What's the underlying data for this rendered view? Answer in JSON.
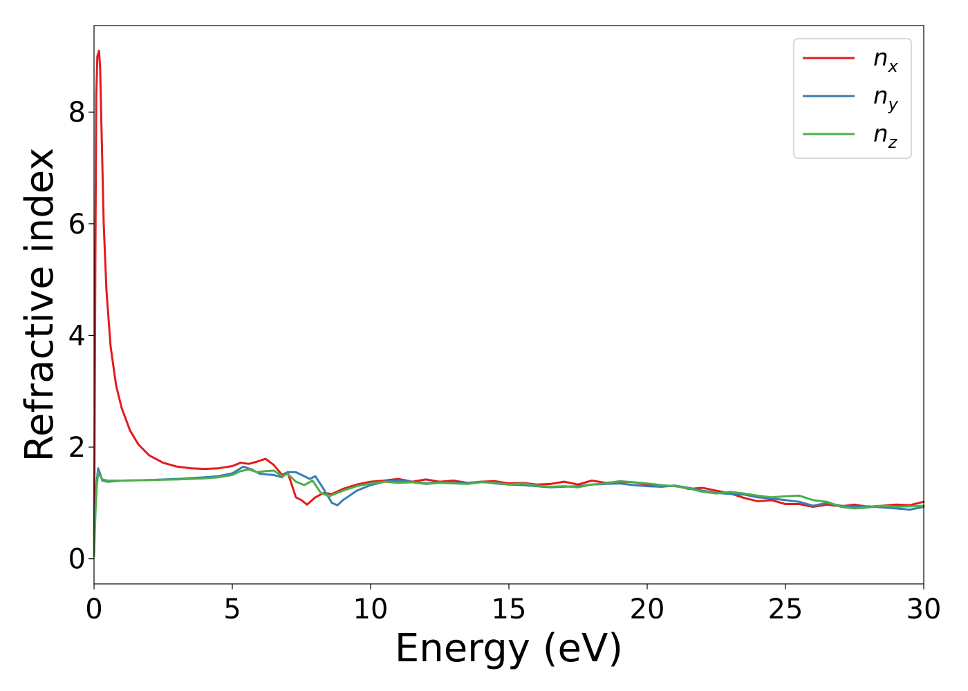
{
  "chart_data": {
    "type": "line",
    "xlabel": "Energy (eV)",
    "ylabel": "Refractive index",
    "xlim": [
      0,
      30
    ],
    "ylim": [
      -0.45,
      9.55
    ],
    "xticks": [
      "0",
      "5",
      "10",
      "15",
      "20",
      "25",
      "30"
    ],
    "yticks": [
      "0",
      "2",
      "4",
      "6",
      "8"
    ],
    "grid": false,
    "legend_position": "top-right",
    "series": [
      {
        "name": "n",
        "subscript": "x",
        "color": "#e41a1c",
        "x": [
          0,
          0.02,
          0.05,
          0.08,
          0.12,
          0.18,
          0.22,
          0.28,
          0.35,
          0.45,
          0.6,
          0.8,
          1.0,
          1.3,
          1.6,
          2.0,
          2.5,
          3.0,
          3.5,
          4.0,
          4.5,
          5.0,
          5.3,
          5.6,
          5.9,
          6.2,
          6.5,
          6.8,
          7.0,
          7.3,
          7.5,
          7.7,
          8.0,
          8.3,
          8.6,
          9.0,
          9.5,
          10.0,
          10.5,
          11.0,
          11.5,
          12.0,
          12.5,
          13.0,
          13.5,
          14.0,
          14.5,
          15.0,
          15.5,
          16.0,
          16.5,
          17.0,
          17.5,
          18.0,
          18.5,
          19.0,
          19.5,
          20.0,
          20.5,
          21.0,
          21.5,
          22.0,
          22.5,
          23.0,
          23.5,
          24.0,
          24.5,
          25.0,
          25.5,
          26.0,
          26.5,
          27.0,
          27.5,
          28.0,
          28.5,
          29.0,
          29.5,
          30.0
        ],
        "y": [
          0.05,
          2.0,
          5.5,
          8.3,
          9.0,
          9.1,
          8.8,
          7.5,
          6.0,
          4.8,
          3.8,
          3.1,
          2.7,
          2.3,
          2.05,
          1.85,
          1.72,
          1.65,
          1.62,
          1.61,
          1.62,
          1.66,
          1.72,
          1.7,
          1.74,
          1.79,
          1.68,
          1.5,
          1.55,
          1.1,
          1.05,
          0.97,
          1.1,
          1.18,
          1.16,
          1.25,
          1.33,
          1.38,
          1.4,
          1.43,
          1.38,
          1.42,
          1.38,
          1.4,
          1.36,
          1.38,
          1.39,
          1.35,
          1.36,
          1.33,
          1.34,
          1.38,
          1.33,
          1.4,
          1.36,
          1.38,
          1.37,
          1.33,
          1.29,
          1.31,
          1.25,
          1.27,
          1.22,
          1.17,
          1.09,
          1.03,
          1.05,
          0.98,
          0.98,
          0.93,
          0.97,
          0.94,
          0.97,
          0.93,
          0.95,
          0.97,
          0.96,
          1.02
        ]
      },
      {
        "name": "n",
        "subscript": "y",
        "color": "#377eb8",
        "x": [
          0,
          0.05,
          0.1,
          0.15,
          0.2,
          0.3,
          0.5,
          0.8,
          1.0,
          2.0,
          3.0,
          4.0,
          4.5,
          5.0,
          5.4,
          5.7,
          6.0,
          6.5,
          6.8,
          7.0,
          7.3,
          7.6,
          7.8,
          8.0,
          8.3,
          8.6,
          8.8,
          9.0,
          9.5,
          10.0,
          10.5,
          11.0,
          11.5,
          12.0,
          12.5,
          13.0,
          13.5,
          14.0,
          14.5,
          15.0,
          15.5,
          16.0,
          16.5,
          17.0,
          17.5,
          18.0,
          18.5,
          19.0,
          19.5,
          20.0,
          20.5,
          21.0,
          21.5,
          22.0,
          22.5,
          23.0,
          23.5,
          24.0,
          24.5,
          25.0,
          25.5,
          26.0,
          26.5,
          27.0,
          27.5,
          28.0,
          28.5,
          29.0,
          29.5,
          30.0
        ],
        "y": [
          0.05,
          0.9,
          1.4,
          1.62,
          1.55,
          1.4,
          1.38,
          1.39,
          1.4,
          1.41,
          1.43,
          1.46,
          1.48,
          1.53,
          1.65,
          1.6,
          1.52,
          1.5,
          1.46,
          1.55,
          1.55,
          1.48,
          1.43,
          1.48,
          1.25,
          1.0,
          0.96,
          1.05,
          1.22,
          1.32,
          1.38,
          1.4,
          1.38,
          1.35,
          1.37,
          1.36,
          1.35,
          1.38,
          1.35,
          1.33,
          1.32,
          1.3,
          1.28,
          1.29,
          1.3,
          1.33,
          1.34,
          1.35,
          1.32,
          1.3,
          1.29,
          1.31,
          1.27,
          1.22,
          1.18,
          1.16,
          1.15,
          1.1,
          1.08,
          1.05,
          1.02,
          0.95,
          1.0,
          0.95,
          0.93,
          0.94,
          0.92,
          0.9,
          0.88,
          0.93
        ]
      },
      {
        "name": "n",
        "subscript": "z",
        "color": "#4daf4a",
        "x": [
          0,
          0.05,
          0.1,
          0.15,
          0.2,
          0.3,
          0.5,
          0.8,
          1.0,
          2.0,
          3.0,
          4.0,
          4.5,
          5.0,
          5.3,
          5.6,
          5.9,
          6.2,
          6.5,
          6.8,
          7.0,
          7.3,
          7.6,
          7.9,
          8.2,
          8.5,
          9.0,
          9.5,
          10.0,
          10.5,
          11.0,
          11.5,
          12.0,
          12.5,
          13.0,
          13.5,
          14.0,
          14.5,
          15.0,
          15.5,
          16.0,
          16.5,
          17.0,
          17.5,
          18.0,
          18.5,
          19.0,
          19.5,
          20.0,
          20.5,
          21.0,
          21.5,
          22.0,
          22.5,
          23.0,
          23.5,
          24.0,
          24.5,
          25.0,
          25.5,
          26.0,
          26.5,
          27.0,
          27.5,
          28.0,
          28.5,
          29.0,
          29.5,
          30.0
        ],
        "y": [
          0.05,
          0.8,
          1.3,
          1.55,
          1.5,
          1.42,
          1.4,
          1.4,
          1.4,
          1.41,
          1.42,
          1.44,
          1.46,
          1.5,
          1.57,
          1.6,
          1.55,
          1.57,
          1.58,
          1.48,
          1.52,
          1.38,
          1.32,
          1.4,
          1.18,
          1.12,
          1.22,
          1.3,
          1.35,
          1.38,
          1.36,
          1.37,
          1.34,
          1.36,
          1.35,
          1.34,
          1.37,
          1.36,
          1.33,
          1.35,
          1.31,
          1.29,
          1.3,
          1.28,
          1.33,
          1.35,
          1.39,
          1.37,
          1.35,
          1.32,
          1.3,
          1.26,
          1.2,
          1.17,
          1.2,
          1.17,
          1.13,
          1.1,
          1.12,
          1.13,
          1.05,
          1.02,
          0.93,
          0.9,
          0.92,
          0.95,
          0.93,
          0.94,
          0.95
        ]
      }
    ]
  }
}
